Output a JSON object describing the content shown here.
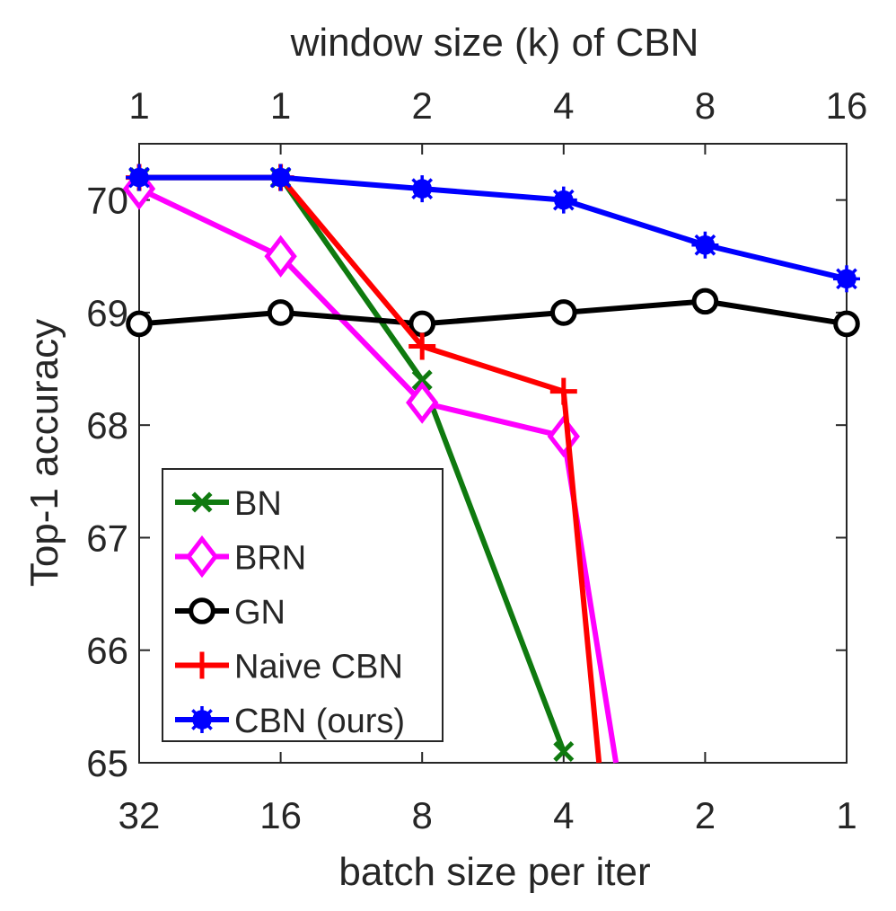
{
  "chart_data": {
    "type": "line",
    "xlabel": "batch size per iter",
    "x2label": "window size (k) of CBN",
    "ylabel": "Top-1 accuracy",
    "categories": [
      "32",
      "16",
      "8",
      "4",
      "2",
      "1"
    ],
    "top_categories": [
      "1",
      "1",
      "2",
      "4",
      "8",
      "16"
    ],
    "ylim": [
      65,
      70.5
    ],
    "yticks": [
      65,
      66,
      67,
      68,
      69,
      70
    ],
    "grid": false,
    "legend_position": "bottom-left",
    "series": [
      {
        "name": "BN",
        "color": "#0f7a0f",
        "marker": "x",
        "points": [
          [
            0,
            70.2
          ],
          [
            1,
            70.2
          ],
          [
            2,
            68.4
          ],
          [
            3,
            65.1
          ]
        ]
      },
      {
        "name": "BRN",
        "color": "#ff00ff",
        "marker": "diamond",
        "points": [
          [
            0,
            70.1
          ],
          [
            1,
            69.5
          ],
          [
            2,
            68.2
          ],
          [
            3,
            67.9
          ]
        ],
        "tail_to": [
          3.37,
          65.0
        ]
      },
      {
        "name": "GN",
        "color": "#000000",
        "marker": "circle",
        "points": [
          [
            0,
            68.9
          ],
          [
            1,
            69.0
          ],
          [
            2,
            68.9
          ],
          [
            3,
            69.0
          ],
          [
            4,
            69.1
          ],
          [
            5,
            68.9
          ]
        ]
      },
      {
        "name": "Naive CBN",
        "color": "#ff0000",
        "marker": "plus",
        "points": [
          [
            0,
            70.2
          ],
          [
            1,
            70.2
          ],
          [
            2,
            68.7
          ],
          [
            3,
            68.3
          ]
        ],
        "tail_to": [
          3.25,
          65.0
        ]
      },
      {
        "name": "CBN (ours)",
        "color": "#0000ff",
        "marker": "asterisk",
        "points": [
          [
            0,
            70.2
          ],
          [
            1,
            70.2
          ],
          [
            2,
            70.1
          ],
          [
            3,
            70.0
          ],
          [
            4,
            69.6
          ],
          [
            5,
            69.3
          ]
        ]
      }
    ]
  }
}
